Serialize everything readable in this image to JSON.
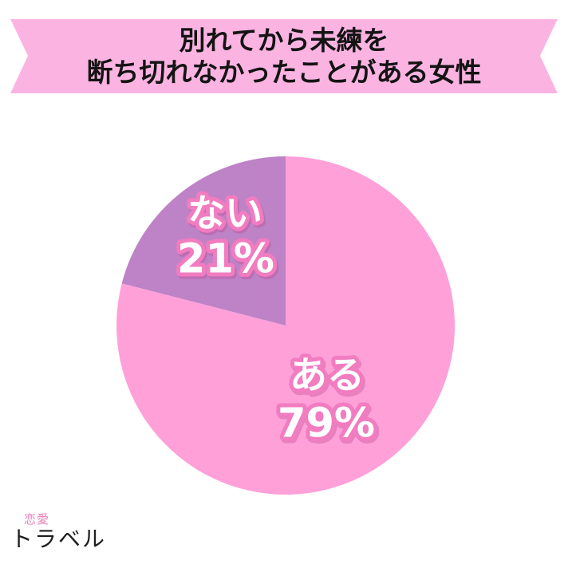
{
  "banner": {
    "line1": "別れてから未練を",
    "line2": "断ち切れなかったことがある女性",
    "bg_color": "#fbb4e2",
    "text_color": "#141414"
  },
  "chart_data": {
    "type": "pie",
    "title": "別れてから未練を断ち切れなかったことがある女性",
    "start_angle": "top",
    "direction": "clockwise",
    "legend": "none",
    "labels_inside": true,
    "total": 100,
    "slices": [
      {
        "label": "ある",
        "pct_label": "79%",
        "value": 79,
        "color": "#ffa0d9"
      },
      {
        "label": "ない",
        "pct_label": "21%",
        "value": 21,
        "color": "#be82c6"
      }
    ],
    "label_text_color": "#ffffff",
    "label_outline_color": "#f17cc0"
  },
  "logo": {
    "small_text": "恋愛",
    "large_text": "トラベル",
    "small_color": "#ef7cba",
    "large_color": "#1f1f1f"
  }
}
